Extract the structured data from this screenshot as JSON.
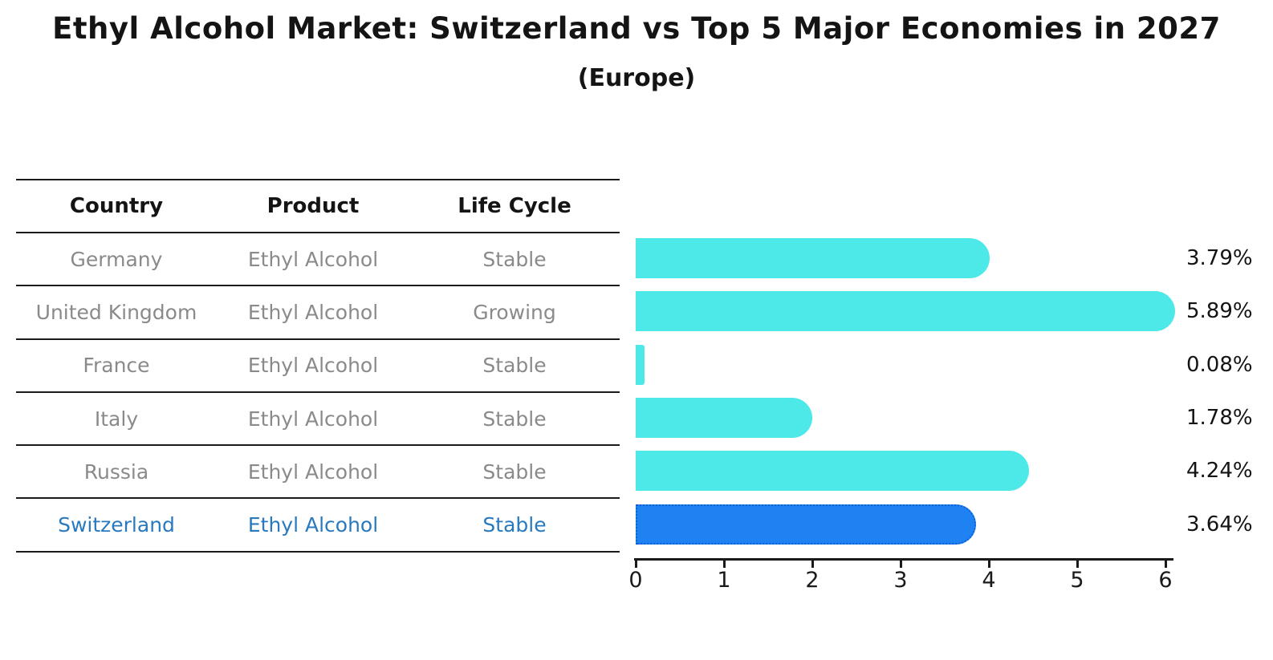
{
  "title": "Ethyl Alcohol Market: Switzerland vs Top 5 Major Economies in 2027",
  "subtitle": "(Europe)",
  "table": {
    "headers": [
      "Country",
      "Product",
      "Life Cycle"
    ],
    "rows": [
      {
        "country": "Germany",
        "product": "Ethyl Alcohol",
        "life_cycle": "Stable",
        "value_label": "3.79%",
        "highlight": false
      },
      {
        "country": "United Kingdom",
        "product": "Ethyl Alcohol",
        "life_cycle": "Growing",
        "value_label": "5.89%",
        "highlight": false
      },
      {
        "country": "France",
        "product": "Ethyl Alcohol",
        "life_cycle": "Stable",
        "value_label": "0.08%",
        "highlight": false
      },
      {
        "country": "Italy",
        "product": "Ethyl Alcohol",
        "life_cycle": "Stable",
        "value_label": "1.78%",
        "highlight": false
      },
      {
        "country": "Russia",
        "product": "Ethyl Alcohol",
        "life_cycle": "Stable",
        "value_label": "4.24%",
        "highlight": false
      },
      {
        "country": "Switzerland",
        "product": "Ethyl Alcohol",
        "life_cycle": "Stable",
        "value_label": "3.64%",
        "highlight": true
      }
    ]
  },
  "chart_data": {
    "type": "bar",
    "orientation": "horizontal",
    "title": "Ethyl Alcohol Market: Switzerland vs Top 5 Major Economies in 2027 (Europe)",
    "categories": [
      "Germany",
      "United Kingdom",
      "France",
      "Italy",
      "Russia",
      "Switzerland"
    ],
    "values": [
      3.79,
      5.89,
      0.08,
      1.78,
      4.24,
      3.64
    ],
    "value_labels": [
      "3.79%",
      "5.89%",
      "0.08%",
      "1.78%",
      "4.24%",
      "3.64%"
    ],
    "xlabel": "",
    "ylabel": "",
    "xlim": [
      0,
      6.1
    ],
    "xticks": [
      0,
      1,
      2,
      3,
      4,
      5,
      6
    ],
    "grid": false,
    "legend": false,
    "highlight_index": 5,
    "bar_color": "#4DE8E8",
    "highlight_bar_color": "#1E82F2",
    "highlight_bar_border_color": "#0F5FD7",
    "highlight_text_color": "#2979BE"
  },
  "colors": {
    "text_primary": "#141414",
    "text_muted": "#8a8a8a",
    "axis": "#1a1a1a"
  }
}
